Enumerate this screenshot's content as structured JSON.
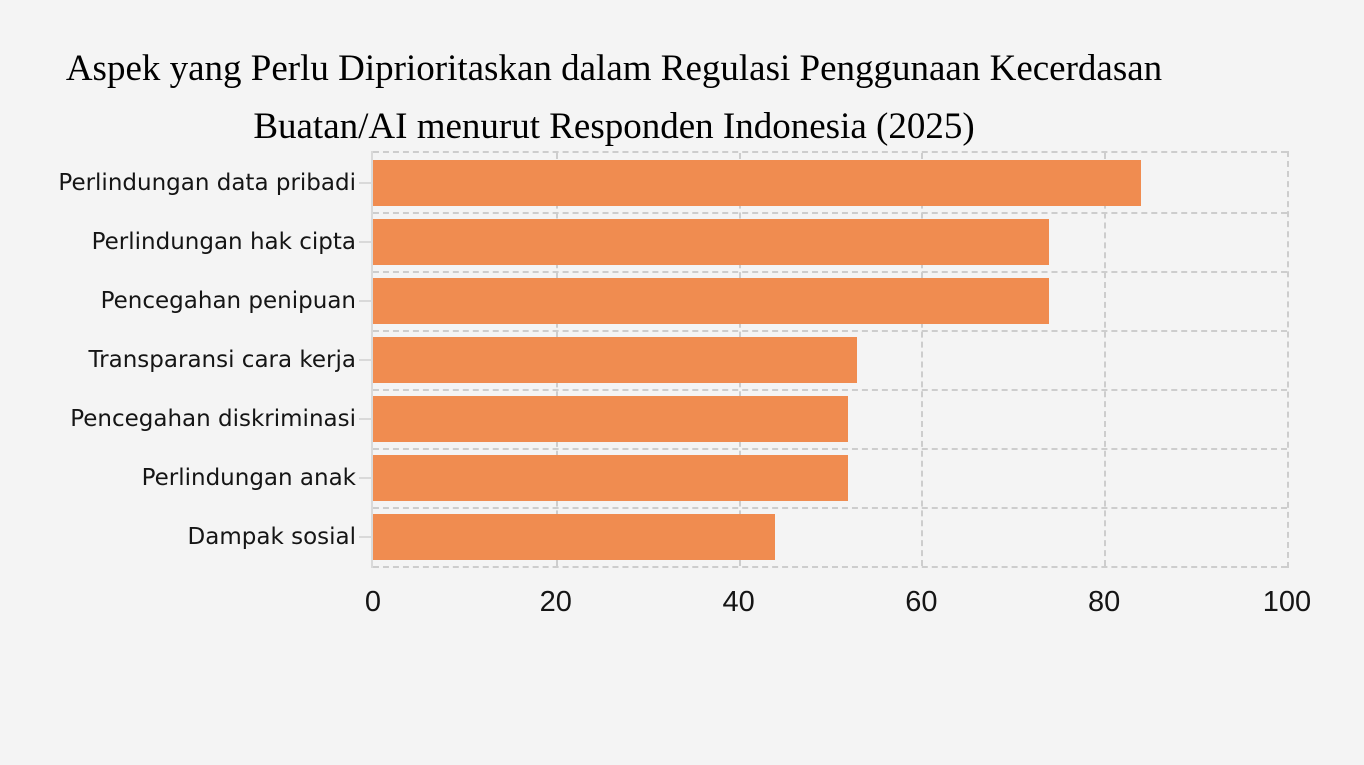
{
  "title": {
    "line1": "Aspek yang Perlu Diprioritaskan dalam Regulasi Penggunaan Kecerdasan",
    "line2": "Buatan/AI menurut Responden Indonesia (2025)"
  },
  "chart_data": {
    "type": "bar",
    "orientation": "horizontal",
    "title": "Aspek yang Perlu Diprioritaskan dalam Regulasi Penggunaan Kecerdasan Buatan/AI menurut Responden Indonesia (2025)",
    "categories": [
      "Perlindungan data pribadi",
      "Perlindungan hak cipta",
      "Pencegahan penipuan",
      "Transparansi cara kerja",
      "Pencegahan diskriminasi",
      "Perlindungan anak",
      "Dampak sosial"
    ],
    "values": [
      84,
      74,
      74,
      53,
      52,
      52,
      44
    ],
    "xlabel": "",
    "ylabel": "",
    "xlim": [
      0,
      100
    ],
    "x_ticks": [
      0,
      20,
      40,
      60,
      80,
      100
    ],
    "grid": "dashed",
    "legend": "none"
  },
  "colors": {
    "background": "#f4f4f4",
    "bar": "#F08C50",
    "gridline": "#cdcdcd",
    "axis_spine": "#d9d9d9",
    "text": "#151515"
  }
}
